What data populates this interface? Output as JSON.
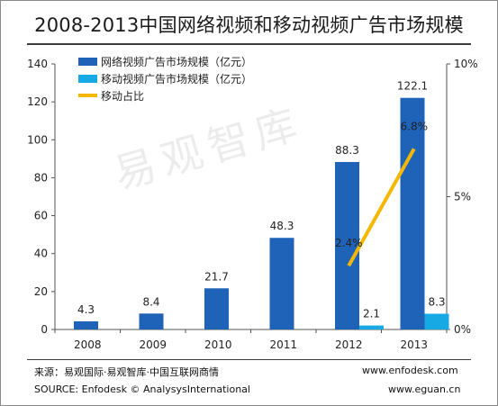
{
  "title": "2008-2013中国网络视频和移动视频广告市场规模",
  "watermark": "易观智库",
  "source": {
    "cn": "来源：易观国际·易观智库·中国互联网商情",
    "en": "SOURCE: Enfodesk © AnalysysInternational",
    "url1": "www.enfodesk.com",
    "url2": "www.eguan.cn"
  },
  "colors": {
    "network": "#1f63b9",
    "mobile": "#16a9e4",
    "share": "#f5b800",
    "axis": "#555555",
    "text": "#222222"
  },
  "chart_data": {
    "type": "bar",
    "title": "2008-2013中国网络视频和移动视频广告市场规模",
    "categories": [
      "2008",
      "2009",
      "2010",
      "2011",
      "2012",
      "2013"
    ],
    "ylim": [
      0,
      140
    ],
    "yticks": [
      0,
      20,
      40,
      60,
      80,
      100,
      120,
      140
    ],
    "y2lim": [
      0,
      10
    ],
    "y2ticks": [
      "0%",
      "5%",
      "10%"
    ],
    "series": [
      {
        "name": "网络视频广告市场规模（亿元）",
        "type": "bar",
        "values": [
          4.3,
          8.4,
          21.7,
          48.3,
          88.3,
          122.1
        ],
        "labels": [
          "4.3",
          "8.4",
          "21.7",
          "48.3",
          "88.3",
          "122.1"
        ]
      },
      {
        "name": "移动视频广告市场规模（亿元）",
        "type": "bar",
        "values": [
          null,
          null,
          null,
          null,
          2.1,
          8.3
        ],
        "labels": [
          "",
          "",
          "",
          "",
          "2.1",
          "8.3"
        ]
      },
      {
        "name": "移动占比",
        "type": "line",
        "axis": "right",
        "values": [
          null,
          null,
          null,
          null,
          2.4,
          6.8
        ],
        "labels": [
          "",
          "",
          "",
          "",
          "2.4%",
          "6.8%"
        ]
      }
    ],
    "legend": "top-left",
    "grid": false
  }
}
